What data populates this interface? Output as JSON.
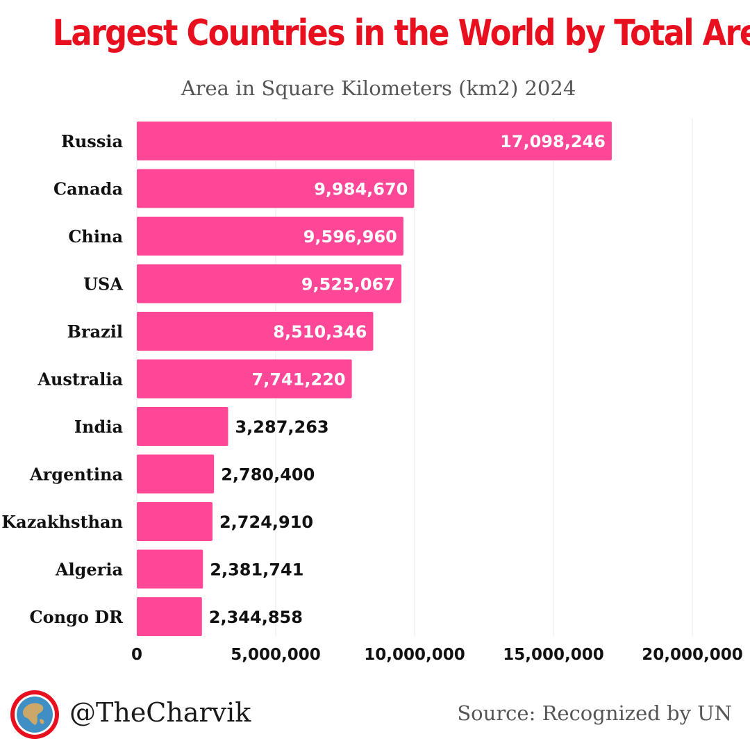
{
  "header": {
    "title": "Largest Countries in the World by Total Area",
    "subtitle": "Area in Square Kilometers (km2) 2024"
  },
  "chart_data": {
    "type": "bar",
    "orientation": "horizontal",
    "title": "Largest Countries in the World by Total Area",
    "subtitle": "Area in Square Kilometers (km2) 2024",
    "categories": [
      "Russia",
      "Canada",
      "China",
      "USA",
      "Brazil",
      "Australia",
      "India",
      "Argentina",
      "Kazakhsthan",
      "Algeria",
      "Congo DR"
    ],
    "values": [
      17098246,
      9984670,
      9596960,
      9525067,
      8510346,
      7741220,
      3287263,
      2780400,
      2724910,
      2381741,
      2344858
    ],
    "value_labels": [
      "17,098,246",
      "9,984,670",
      "9,596,960",
      "9,525,067",
      "8,510,346",
      "7,741,220",
      "3,287,263",
      "2,780,400",
      "2,724,910",
      "2,381,741",
      "2,344,858"
    ],
    "xlim": [
      0,
      20000000
    ],
    "x_ticks": [
      0,
      5000000,
      10000000,
      15000000,
      20000000
    ],
    "x_tick_labels": [
      "0",
      "5,000,000",
      "10,000,000",
      "15,000,000",
      "20,000,000"
    ],
    "xlabel": "",
    "ylabel": "",
    "grid": true,
    "legend": "none",
    "bar_color": "#ff4797"
  },
  "footer": {
    "handle": "@TheCharvik",
    "source": "Source: Recognized by UN",
    "logo_icon": "globe-logo-icon"
  },
  "colors": {
    "title": "#e8101f",
    "bar": "#ff4797",
    "label_inside": "#ffffff",
    "label_outside": "#111111",
    "logo_ring": "#e8101f"
  }
}
